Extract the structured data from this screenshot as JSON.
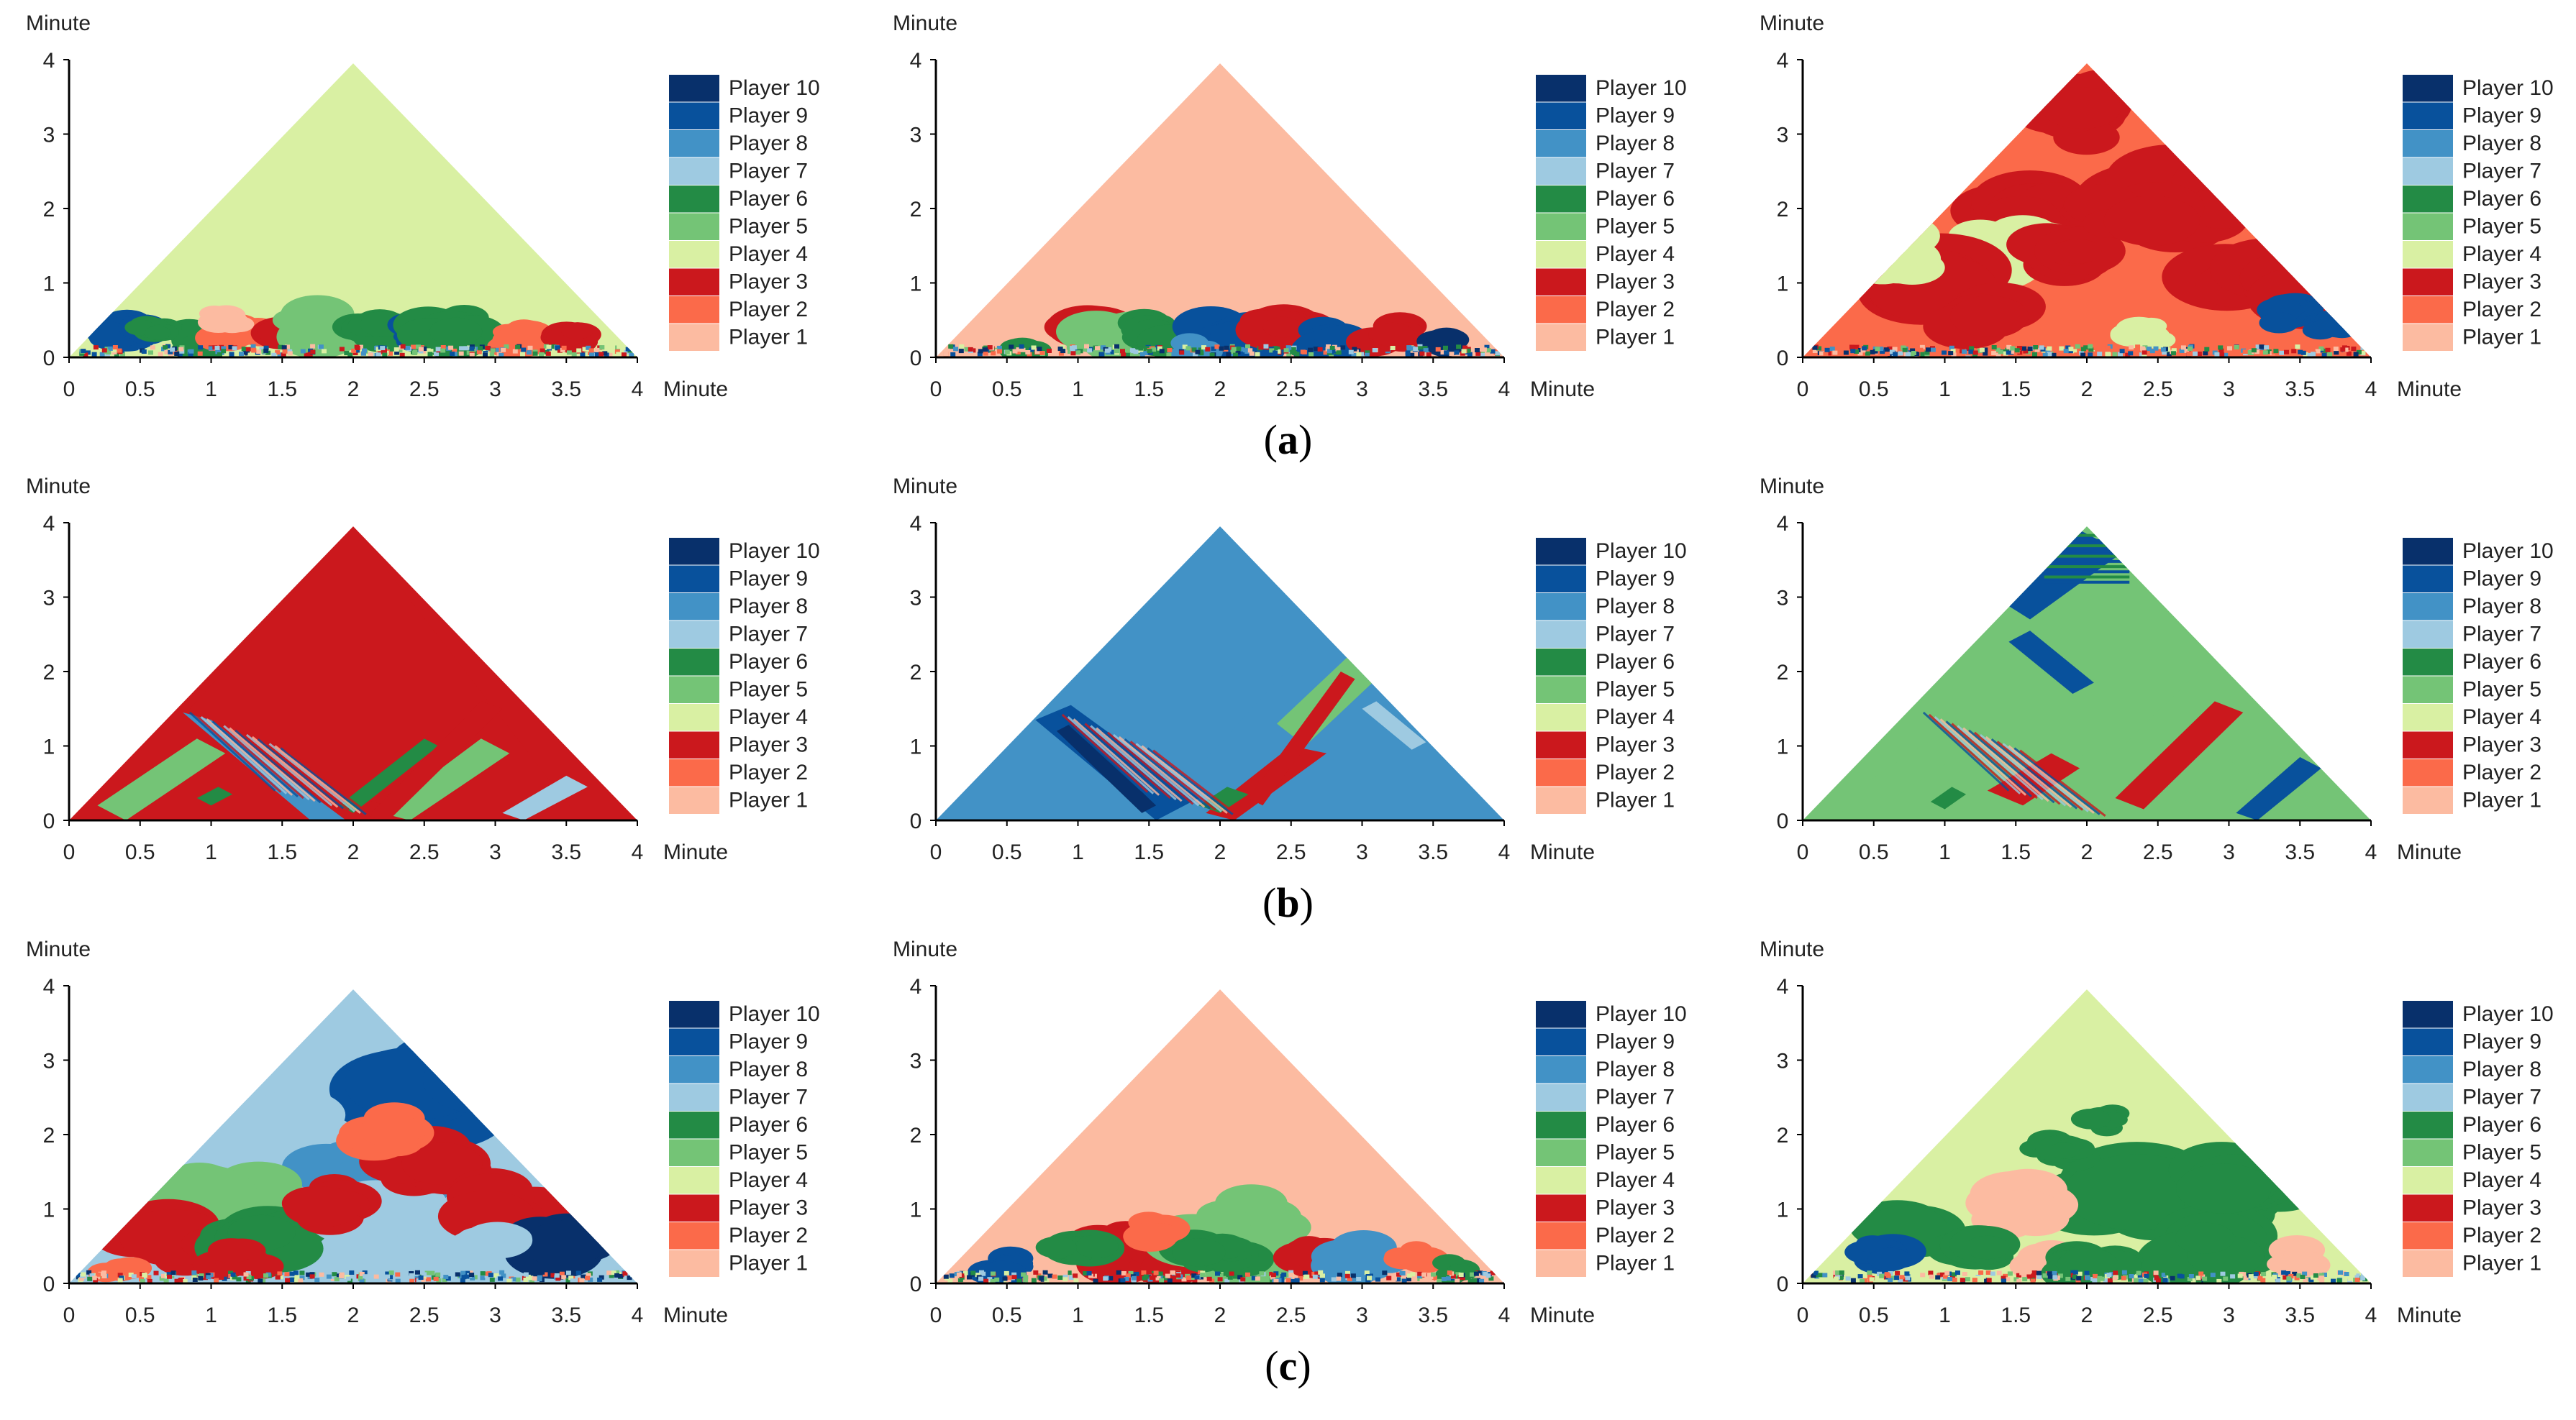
{
  "figure": {
    "row_captions": [
      {
        "open": "(",
        "letter": "a",
        "close": ")"
      },
      {
        "open": "(",
        "letter": "b",
        "close": ")"
      },
      {
        "open": "(",
        "letter": "c",
        "close": ")"
      }
    ]
  },
  "chart_data": [
    {
      "row": "a",
      "col": 1,
      "type": "heatmap",
      "dominant": "Player 4",
      "xlabel": "Minute",
      "ylabel": "Minute",
      "x_ticks": [
        "0",
        "0.5",
        "1",
        "1.5",
        "2",
        "2.5",
        "3",
        "3.5",
        "4"
      ],
      "y_ticks": [
        "0",
        "1",
        "2",
        "3",
        "4"
      ],
      "xlim": [
        0,
        4
      ],
      "ylim": [
        0,
        4
      ],
      "legend": [
        "Player 10",
        "Player 9",
        "Player 8",
        "Player 7",
        "Player 6",
        "Player 5",
        "Player 4",
        "Player 3",
        "Player 2",
        "Player 1"
      ]
    },
    {
      "row": "a",
      "col": 2,
      "type": "heatmap",
      "dominant": "Player 1",
      "xlabel": "Minute",
      "ylabel": "Minute",
      "x_ticks": [
        "0",
        "0.5",
        "1",
        "1.5",
        "2",
        "2.5",
        "3",
        "3.5",
        "4"
      ],
      "y_ticks": [
        "0",
        "1",
        "2",
        "3",
        "4"
      ],
      "xlim": [
        0,
        4
      ],
      "ylim": [
        0,
        4
      ],
      "legend": [
        "Player 10",
        "Player 9",
        "Player 8",
        "Player 7",
        "Player 6",
        "Player 5",
        "Player 4",
        "Player 3",
        "Player 2",
        "Player 1"
      ]
    },
    {
      "row": "a",
      "col": 3,
      "type": "heatmap",
      "dominant": "Player 2",
      "xlabel": "Minute",
      "ylabel": "Minute",
      "x_ticks": [
        "0",
        "0.5",
        "1",
        "1.5",
        "2",
        "2.5",
        "3",
        "3.5",
        "4"
      ],
      "y_ticks": [
        "0",
        "1",
        "2",
        "3",
        "4"
      ],
      "xlim": [
        0,
        4
      ],
      "ylim": [
        0,
        4
      ],
      "legend": [
        "Player 10",
        "Player 9",
        "Player 8",
        "Player 7",
        "Player 6",
        "Player 5",
        "Player 4",
        "Player 3",
        "Player 2",
        "Player 1"
      ]
    },
    {
      "row": "b",
      "col": 1,
      "type": "heatmap",
      "dominant": "Player 3",
      "xlabel": "Minute",
      "ylabel": "Minute",
      "x_ticks": [
        "0",
        "0.5",
        "1",
        "1.5",
        "2",
        "2.5",
        "3",
        "3.5",
        "4"
      ],
      "y_ticks": [
        "0",
        "1",
        "2",
        "3",
        "4"
      ],
      "xlim": [
        0,
        4
      ],
      "ylim": [
        0,
        4
      ],
      "legend": [
        "Player 10",
        "Player 9",
        "Player 8",
        "Player 7",
        "Player 6",
        "Player 5",
        "Player 4",
        "Player 3",
        "Player 2",
        "Player 1"
      ]
    },
    {
      "row": "b",
      "col": 2,
      "type": "heatmap",
      "dominant": "Player 8",
      "xlabel": "Minute",
      "ylabel": "Minute",
      "x_ticks": [
        "0",
        "0.5",
        "1",
        "1.5",
        "2",
        "2.5",
        "3",
        "3.5",
        "4"
      ],
      "y_ticks": [
        "0",
        "1",
        "2",
        "3",
        "4"
      ],
      "xlim": [
        0,
        4
      ],
      "ylim": [
        0,
        4
      ],
      "legend": [
        "Player 10",
        "Player 9",
        "Player 8",
        "Player 7",
        "Player 6",
        "Player 5",
        "Player 4",
        "Player 3",
        "Player 2",
        "Player 1"
      ]
    },
    {
      "row": "b",
      "col": 3,
      "type": "heatmap",
      "dominant": "Player 5",
      "xlabel": "Minute",
      "ylabel": "Minute",
      "x_ticks": [
        "0",
        "0.5",
        "1",
        "1.5",
        "2",
        "2.5",
        "3",
        "3.5",
        "4"
      ],
      "y_ticks": [
        "0",
        "1",
        "2",
        "3",
        "4"
      ],
      "xlim": [
        0,
        4
      ],
      "ylim": [
        0,
        4
      ],
      "legend": [
        "Player 10",
        "Player 9",
        "Player 8",
        "Player 7",
        "Player 6",
        "Player 5",
        "Player 4",
        "Player 3",
        "Player 2",
        "Player 1"
      ]
    },
    {
      "row": "c",
      "col": 1,
      "type": "heatmap",
      "dominant": "Player 7",
      "xlabel": "Minute",
      "ylabel": "Minute",
      "x_ticks": [
        "0",
        "0.5",
        "1",
        "1.5",
        "2",
        "2.5",
        "3",
        "3.5",
        "4"
      ],
      "y_ticks": [
        "0",
        "1",
        "2",
        "3",
        "4"
      ],
      "xlim": [
        0,
        4
      ],
      "ylim": [
        0,
        4
      ],
      "legend": [
        "Player 10",
        "Player 9",
        "Player 8",
        "Player 7",
        "Player 6",
        "Player 5",
        "Player 4",
        "Player 3",
        "Player 2",
        "Player 1"
      ]
    },
    {
      "row": "c",
      "col": 2,
      "type": "heatmap",
      "dominant": "Player 1",
      "xlabel": "Minute",
      "ylabel": "Minute",
      "x_ticks": [
        "0",
        "0.5",
        "1",
        "1.5",
        "2",
        "2.5",
        "3",
        "3.5",
        "4"
      ],
      "y_ticks": [
        "0",
        "1",
        "2",
        "3",
        "4"
      ],
      "xlim": [
        0,
        4
      ],
      "ylim": [
        0,
        4
      ],
      "legend": [
        "Player 10",
        "Player 9",
        "Player 8",
        "Player 7",
        "Player 6",
        "Player 5",
        "Player 4",
        "Player 3",
        "Player 2",
        "Player 1"
      ]
    },
    {
      "row": "c",
      "col": 3,
      "type": "heatmap",
      "dominant": "Player 4",
      "xlabel": "Minute",
      "ylabel": "Minute",
      "x_ticks": [
        "0",
        "0.5",
        "1",
        "1.5",
        "2",
        "2.5",
        "3",
        "3.5",
        "4"
      ],
      "y_ticks": [
        "0",
        "1",
        "2",
        "3",
        "4"
      ],
      "xlim": [
        0,
        4
      ],
      "ylim": [
        0,
        4
      ],
      "legend": [
        "Player 10",
        "Player 9",
        "Player 8",
        "Player 7",
        "Player 6",
        "Player 5",
        "Player 4",
        "Player 3",
        "Player 2",
        "Player 1"
      ]
    }
  ],
  "palette": {
    "Player 10": "#08306b",
    "Player 9": "#08519c",
    "Player 8": "#4292c6",
    "Player 7": "#9ecae1",
    "Player 6": "#238b45",
    "Player 5": "#74c476",
    "Player 4": "#d9f0a3",
    "Player 3": "#cb181d",
    "Player 2": "#fb6a4a",
    "Player 1": "#fcbba1"
  }
}
